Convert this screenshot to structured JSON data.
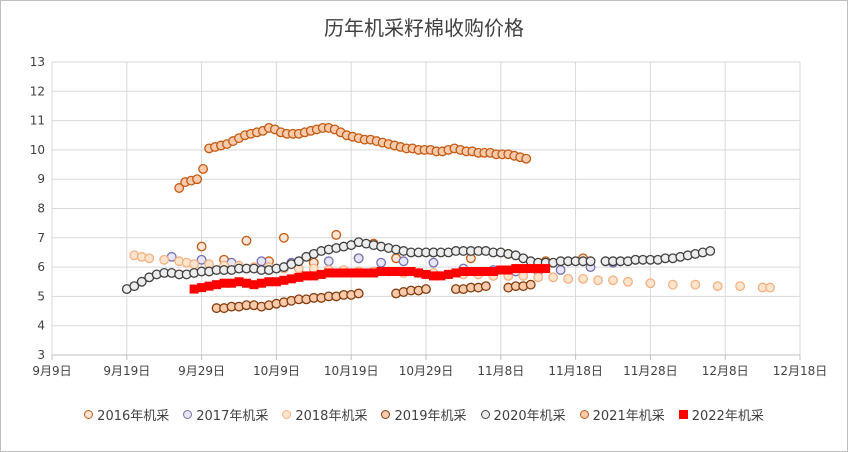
{
  "chart_data": {
    "type": "scatter",
    "title": "历年机采籽棉收购价格",
    "xlabel": "",
    "ylabel": "",
    "x_ticks": [
      "9月9日",
      "9月19日",
      "9月29日",
      "10月9日",
      "10月19日",
      "10月29日",
      "11月8日",
      "11月18日",
      "11月28日",
      "12月8日",
      "12月18日"
    ],
    "xlim": [
      0,
      100
    ],
    "ylim": [
      3,
      13
    ],
    "y_ticks": [
      3,
      4,
      5,
      6,
      7,
      8,
      9,
      10,
      11,
      12,
      13
    ],
    "grid": true,
    "legend_position": "bottom",
    "series": [
      {
        "name": "2016年机采",
        "color": "#c55a11",
        "fill": "#fbe5d6",
        "marker": "circle",
        "points": [
          [
            20,
            6.7
          ],
          [
            23,
            6.25
          ],
          [
            26,
            6.9
          ],
          [
            29,
            6.2
          ],
          [
            31,
            7.0
          ],
          [
            35,
            6.15
          ],
          [
            38,
            7.1
          ],
          [
            41,
            6.3
          ],
          [
            43,
            6.8
          ],
          [
            46,
            6.3
          ],
          [
            51,
            6.5
          ],
          [
            56,
            6.3
          ],
          [
            61,
            6.45
          ],
          [
            66,
            6.2
          ],
          [
            71,
            6.3
          ]
        ]
      },
      {
        "name": "2017年机采",
        "color": "#7570b3",
        "fill": "#e8e6f5",
        "marker": "circle",
        "points": [
          [
            16,
            6.35
          ],
          [
            20,
            6.25
          ],
          [
            24,
            6.15
          ],
          [
            28,
            6.2
          ],
          [
            32,
            6.15
          ],
          [
            37,
            6.2
          ],
          [
            41,
            6.3
          ],
          [
            44,
            6.15
          ],
          [
            47,
            6.2
          ],
          [
            51,
            6.15
          ],
          [
            55,
            5.95
          ],
          [
            59,
            5.9
          ],
          [
            62,
            5.85
          ],
          [
            65,
            5.85
          ],
          [
            68,
            5.9
          ],
          [
            72,
            6.0
          ],
          [
            75,
            6.15
          ],
          [
            78,
            6.25
          ]
        ]
      },
      {
        "name": "2018年机采",
        "color": "#f4b183",
        "fill": "#fde4cc",
        "marker": "circle",
        "points": [
          [
            11,
            6.4
          ],
          [
            12,
            6.35
          ],
          [
            13,
            6.3
          ],
          [
            15,
            6.25
          ],
          [
            17,
            6.2
          ],
          [
            18,
            6.15
          ],
          [
            19,
            6.1
          ],
          [
            21,
            6.1
          ],
          [
            23,
            6.05
          ],
          [
            25,
            6.05
          ],
          [
            27,
            6.0
          ],
          [
            29,
            6.0
          ],
          [
            31,
            5.95
          ],
          [
            33,
            5.95
          ],
          [
            35,
            5.95
          ],
          [
            37,
            5.9
          ],
          [
            39,
            5.9
          ],
          [
            41,
            5.85
          ],
          [
            43,
            5.85
          ],
          [
            45,
            5.85
          ],
          [
            47,
            5.8
          ],
          [
            49,
            5.8
          ],
          [
            51,
            5.8
          ],
          [
            53,
            5.75
          ],
          [
            55,
            5.75
          ],
          [
            57,
            5.75
          ],
          [
            59,
            5.7
          ],
          [
            61,
            5.7
          ],
          [
            63,
            5.7
          ],
          [
            65,
            5.65
          ],
          [
            67,
            5.65
          ],
          [
            69,
            5.6
          ],
          [
            71,
            5.6
          ],
          [
            73,
            5.55
          ],
          [
            75,
            5.55
          ],
          [
            77,
            5.5
          ],
          [
            80,
            5.45
          ],
          [
            83,
            5.4
          ],
          [
            86,
            5.4
          ],
          [
            89,
            5.35
          ],
          [
            92,
            5.35
          ],
          [
            95,
            5.3
          ],
          [
            96,
            5.3
          ]
        ]
      },
      {
        "name": "2019年机采",
        "color": "#843c0c",
        "fill": "#f8cbad",
        "marker": "circle",
        "points": [
          [
            22,
            4.6
          ],
          [
            23,
            4.6
          ],
          [
            24,
            4.65
          ],
          [
            25,
            4.65
          ],
          [
            26,
            4.7
          ],
          [
            27,
            4.7
          ],
          [
            28,
            4.65
          ],
          [
            29,
            4.7
          ],
          [
            30,
            4.75
          ],
          [
            31,
            4.8
          ],
          [
            32,
            4.85
          ],
          [
            33,
            4.9
          ],
          [
            34,
            4.9
          ],
          [
            35,
            4.95
          ],
          [
            36,
            4.95
          ],
          [
            37,
            5.0
          ],
          [
            38,
            5.0
          ],
          [
            39,
            5.05
          ],
          [
            40,
            5.05
          ],
          [
            41,
            5.1
          ],
          [
            46,
            5.1
          ],
          [
            47,
            5.15
          ],
          [
            48,
            5.2
          ],
          [
            49,
            5.2
          ],
          [
            50,
            5.25
          ],
          [
            54,
            5.25
          ],
          [
            55,
            5.25
          ],
          [
            56,
            5.3
          ],
          [
            57,
            5.3
          ],
          [
            58,
            5.35
          ],
          [
            61,
            5.3
          ],
          [
            62,
            5.35
          ],
          [
            63,
            5.35
          ],
          [
            64,
            5.4
          ]
        ]
      },
      {
        "name": "2020年机采",
        "color": "#404040",
        "fill": "#ededed",
        "marker": "circle",
        "points": [
          [
            10,
            5.25
          ],
          [
            11,
            5.35
          ],
          [
            12,
            5.5
          ],
          [
            13,
            5.65
          ],
          [
            14,
            5.75
          ],
          [
            15,
            5.8
          ],
          [
            16,
            5.8
          ],
          [
            17,
            5.75
          ],
          [
            18,
            5.75
          ],
          [
            19,
            5.8
          ],
          [
            20,
            5.85
          ],
          [
            21,
            5.85
          ],
          [
            22,
            5.9
          ],
          [
            23,
            5.9
          ],
          [
            24,
            5.9
          ],
          [
            25,
            5.95
          ],
          [
            26,
            5.95
          ],
          [
            27,
            5.95
          ],
          [
            28,
            5.9
          ],
          [
            29,
            5.9
          ],
          [
            30,
            5.95
          ],
          [
            31,
            6.0
          ],
          [
            32,
            6.1
          ],
          [
            33,
            6.2
          ],
          [
            34,
            6.35
          ],
          [
            35,
            6.45
          ],
          [
            36,
            6.55
          ],
          [
            37,
            6.6
          ],
          [
            38,
            6.65
          ],
          [
            39,
            6.7
          ],
          [
            40,
            6.75
          ],
          [
            41,
            6.85
          ],
          [
            42,
            6.8
          ],
          [
            43,
            6.75
          ],
          [
            44,
            6.7
          ],
          [
            45,
            6.65
          ],
          [
            46,
            6.6
          ],
          [
            47,
            6.55
          ],
          [
            48,
            6.5
          ],
          [
            49,
            6.5
          ],
          [
            50,
            6.5
          ],
          [
            51,
            6.5
          ],
          [
            52,
            6.5
          ],
          [
            53,
            6.5
          ],
          [
            54,
            6.55
          ],
          [
            55,
            6.55
          ],
          [
            56,
            6.55
          ],
          [
            57,
            6.55
          ],
          [
            58,
            6.55
          ],
          [
            59,
            6.5
          ],
          [
            60,
            6.5
          ],
          [
            61,
            6.45
          ],
          [
            62,
            6.4
          ],
          [
            63,
            6.3
          ],
          [
            64,
            6.2
          ],
          [
            65,
            6.15
          ],
          [
            66,
            6.15
          ],
          [
            67,
            6.15
          ],
          [
            68,
            6.2
          ],
          [
            69,
            6.2
          ],
          [
            70,
            6.2
          ],
          [
            71,
            6.2
          ],
          [
            72,
            6.2
          ],
          [
            74,
            6.2
          ],
          [
            75,
            6.2
          ],
          [
            76,
            6.2
          ],
          [
            77,
            6.2
          ],
          [
            78,
            6.25
          ],
          [
            79,
            6.25
          ],
          [
            80,
            6.25
          ],
          [
            81,
            6.25
          ],
          [
            82,
            6.3
          ],
          [
            83,
            6.3
          ],
          [
            84,
            6.35
          ],
          [
            85,
            6.4
          ],
          [
            86,
            6.45
          ],
          [
            87,
            6.5
          ],
          [
            88,
            6.55
          ]
        ]
      },
      {
        "name": "2021年机采",
        "color": "#c55a11",
        "fill": "#f8cbad",
        "marker": "circle",
        "points": [
          [
            17,
            8.7
          ],
          [
            17.8,
            8.9
          ],
          [
            18.6,
            8.95
          ],
          [
            19.4,
            9.0
          ],
          [
            20.2,
            9.35
          ],
          [
            21,
            10.05
          ],
          [
            21.8,
            10.1
          ],
          [
            22.6,
            10.15
          ],
          [
            23.4,
            10.2
          ],
          [
            24.2,
            10.3
          ],
          [
            25,
            10.4
          ],
          [
            25.8,
            10.5
          ],
          [
            26.6,
            10.55
          ],
          [
            27.4,
            10.6
          ],
          [
            28.2,
            10.65
          ],
          [
            29,
            10.75
          ],
          [
            29.8,
            10.7
          ],
          [
            30.6,
            10.6
          ],
          [
            31.4,
            10.55
          ],
          [
            32.2,
            10.55
          ],
          [
            33,
            10.55
          ],
          [
            33.8,
            10.6
          ],
          [
            34.6,
            10.65
          ],
          [
            35.4,
            10.7
          ],
          [
            36.2,
            10.75
          ],
          [
            37,
            10.75
          ],
          [
            37.8,
            10.7
          ],
          [
            38.6,
            10.6
          ],
          [
            39.4,
            10.5
          ],
          [
            40.2,
            10.45
          ],
          [
            41,
            10.4
          ],
          [
            41.8,
            10.35
          ],
          [
            42.6,
            10.35
          ],
          [
            43.4,
            10.3
          ],
          [
            44.2,
            10.25
          ],
          [
            45,
            10.2
          ],
          [
            45.8,
            10.15
          ],
          [
            46.6,
            10.1
          ],
          [
            47.4,
            10.05
          ],
          [
            48.2,
            10.05
          ],
          [
            49,
            10.0
          ],
          [
            49.8,
            10.0
          ],
          [
            50.6,
            10.0
          ],
          [
            51.4,
            9.95
          ],
          [
            52.2,
            9.95
          ],
          [
            53,
            10.0
          ],
          [
            53.8,
            10.05
          ],
          [
            54.6,
            10.0
          ],
          [
            55.4,
            9.95
          ],
          [
            56.2,
            9.95
          ],
          [
            57,
            9.9
          ],
          [
            57.8,
            9.9
          ],
          [
            58.6,
            9.9
          ],
          [
            59.4,
            9.85
          ],
          [
            60.2,
            9.85
          ],
          [
            61,
            9.85
          ],
          [
            61.8,
            9.8
          ],
          [
            62.6,
            9.75
          ],
          [
            63.4,
            9.7
          ]
        ]
      },
      {
        "name": "2022年机采",
        "color": "#ff0000",
        "fill": "#ff0000",
        "marker": "square",
        "points": [
          [
            19,
            5.25
          ],
          [
            20,
            5.3
          ],
          [
            21,
            5.35
          ],
          [
            22,
            5.4
          ],
          [
            23,
            5.45
          ],
          [
            24,
            5.45
          ],
          [
            25,
            5.5
          ],
          [
            26,
            5.45
          ],
          [
            27,
            5.4
          ],
          [
            28,
            5.45
          ],
          [
            29,
            5.5
          ],
          [
            30,
            5.5
          ],
          [
            31,
            5.55
          ],
          [
            32,
            5.6
          ],
          [
            33,
            5.65
          ],
          [
            34,
            5.7
          ],
          [
            35,
            5.7
          ],
          [
            36,
            5.75
          ],
          [
            37,
            5.8
          ],
          [
            38,
            5.8
          ],
          [
            39,
            5.8
          ],
          [
            40,
            5.8
          ],
          [
            41,
            5.8
          ],
          [
            42,
            5.8
          ],
          [
            43,
            5.8
          ],
          [
            44,
            5.85
          ],
          [
            45,
            5.85
          ],
          [
            46,
            5.85
          ],
          [
            47,
            5.85
          ],
          [
            48,
            5.85
          ],
          [
            49,
            5.8
          ],
          [
            50,
            5.75
          ],
          [
            51,
            5.7
          ],
          [
            52,
            5.7
          ],
          [
            53,
            5.75
          ],
          [
            54,
            5.8
          ],
          [
            55,
            5.85
          ],
          [
            56,
            5.85
          ],
          [
            57,
            5.85
          ],
          [
            58,
            5.85
          ],
          [
            59,
            5.85
          ],
          [
            60,
            5.9
          ],
          [
            61,
            5.9
          ],
          [
            62,
            5.95
          ],
          [
            63,
            5.95
          ],
          [
            64,
            5.95
          ],
          [
            65,
            5.95
          ],
          [
            66,
            5.95
          ]
        ]
      }
    ]
  }
}
